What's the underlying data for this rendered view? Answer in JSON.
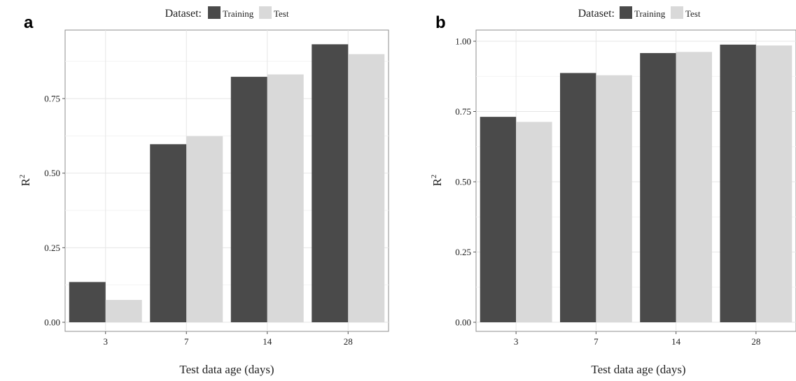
{
  "chart_data": [
    {
      "panel": "a",
      "type": "bar",
      "legend": {
        "title": "Dataset:",
        "placement": "top"
      },
      "categories": [
        "3",
        "7",
        "14",
        "28"
      ],
      "series": [
        {
          "name": "Training",
          "color": "#4a4a4a",
          "values": [
            0.135,
            0.597,
            0.823,
            0.932
          ]
        },
        {
          "name": "Test",
          "color": "#d9d9d9",
          "values": [
            0.075,
            0.624,
            0.831,
            0.899
          ]
        }
      ],
      "xlabel": "Test data age (days)",
      "ylabel": "R",
      "ylabel_superscript": "2",
      "ylim": [
        0,
        0.96
      ],
      "yticks": [
        "0.00",
        "0.25",
        "0.50",
        "0.75"
      ],
      "grid": true
    },
    {
      "panel": "b",
      "type": "bar",
      "legend": {
        "title": "Dataset:",
        "placement": "top"
      },
      "categories": [
        "3",
        "7",
        "14",
        "28"
      ],
      "series": [
        {
          "name": "Training",
          "color": "#4a4a4a",
          "values": [
            0.731,
            0.887,
            0.958,
            0.988
          ]
        },
        {
          "name": "Test",
          "color": "#d9d9d9",
          "values": [
            0.713,
            0.879,
            0.962,
            0.985
          ]
        }
      ],
      "xlabel": "Test data age (days)",
      "ylabel": "R",
      "ylabel_superscript": "2",
      "ylim": [
        0,
        1.03
      ],
      "yticks": [
        "0.00",
        "0.25",
        "0.50",
        "0.75",
        "1.00"
      ],
      "grid": true
    }
  ]
}
